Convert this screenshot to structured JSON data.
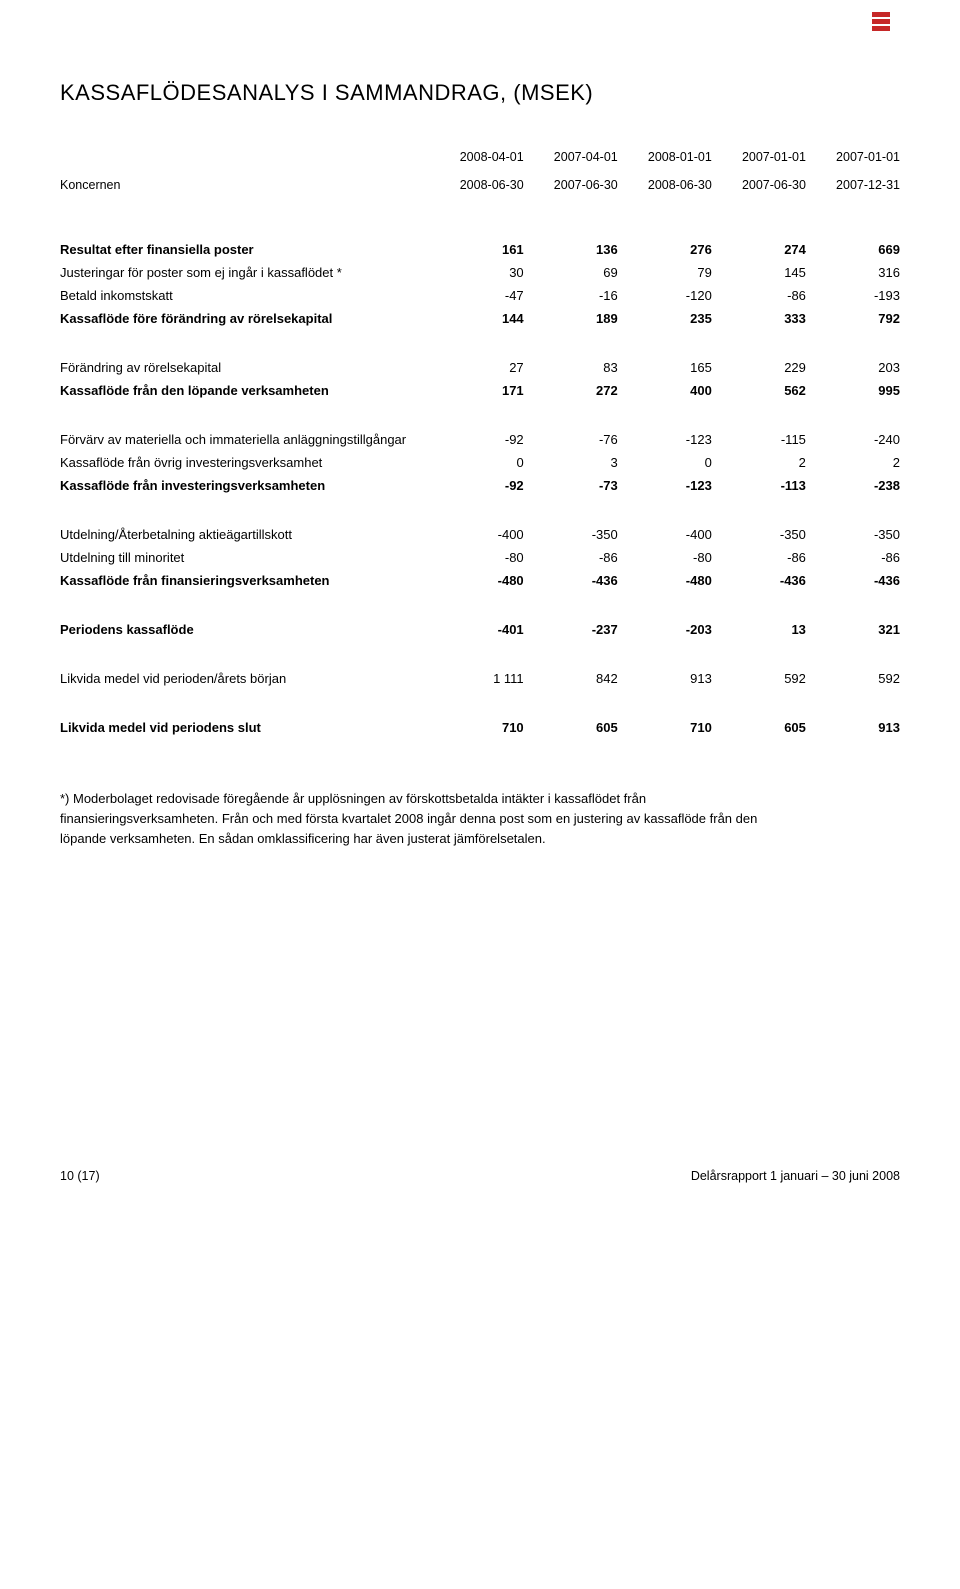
{
  "title": "KASSAFLÖDESANALYS I SAMMANDRAG, (MSEK)",
  "subtitle": "Koncernen",
  "columns": {
    "dates_top": [
      "2008-04-01",
      "2007-04-01",
      "2008-01-01",
      "2007-01-01",
      "2007-01-01"
    ],
    "dates_bot": [
      "2008-06-30",
      "2007-06-30",
      "2008-06-30",
      "2007-06-30",
      "2007-12-31"
    ]
  },
  "rows": [
    {
      "label": "Resultat efter finansiella poster",
      "vals": [
        "161",
        "136",
        "276",
        "274",
        "669"
      ],
      "bold": true,
      "gap_before": "big"
    },
    {
      "label": "Justeringar för poster som ej ingår i kassaflödet *",
      "vals": [
        "30",
        "69",
        "79",
        "145",
        "316"
      ]
    },
    {
      "label": "Betald inkomstskatt",
      "vals": [
        "-47",
        "-16",
        "-120",
        "-86",
        "-193"
      ]
    },
    {
      "label": "Kassaflöde före förändring av rörelsekapital",
      "vals": [
        "144",
        "189",
        "235",
        "333",
        "792"
      ],
      "bold": true
    },
    {
      "label": "Förändring av rörelsekapital",
      "vals": [
        "27",
        "83",
        "165",
        "229",
        "203"
      ],
      "gap_before": "section"
    },
    {
      "label": "Kassaflöde från den löpande verksamheten",
      "vals": [
        "171",
        "272",
        "400",
        "562",
        "995"
      ],
      "bold": true
    },
    {
      "label": "Förvärv av materiella och immateriella anläggningstillgångar",
      "vals": [
        "-92",
        "-76",
        "-123",
        "-115",
        "-240"
      ],
      "gap_before": "section"
    },
    {
      "label": "Kassaflöde från övrig investeringsverksamhet",
      "vals": [
        "0",
        "3",
        "0",
        "2",
        "2"
      ]
    },
    {
      "label": "Kassaflöde från investeringsverksamheten",
      "vals": [
        "-92",
        "-73",
        "-123",
        "-113",
        "-238"
      ],
      "bold": true
    },
    {
      "label": "Utdelning/Återbetalning aktieägartillskott",
      "vals": [
        "-400",
        "-350",
        "-400",
        "-350",
        "-350"
      ],
      "gap_before": "section"
    },
    {
      "label": "Utdelning till minoritet",
      "vals": [
        "-80",
        "-86",
        "-80",
        "-86",
        "-86"
      ]
    },
    {
      "label": "Kassaflöde från finansieringsverksamheten",
      "vals": [
        "-480",
        "-436",
        "-480",
        "-436",
        "-436"
      ],
      "bold": true
    },
    {
      "label": "Periodens kassaflöde",
      "vals": [
        "-401",
        "-237",
        "-203",
        "13",
        "321"
      ],
      "bold": true,
      "gap_before": "section"
    },
    {
      "label": "Likvida medel vid perioden/årets början",
      "vals": [
        "1 111",
        "842",
        "913",
        "592",
        "592"
      ],
      "gap_before": "section"
    },
    {
      "label": "Likvida medel vid periodens slut",
      "vals": [
        "710",
        "605",
        "710",
        "605",
        "913"
      ],
      "bold": true,
      "gap_before": "section"
    }
  ],
  "footnote": "*) Moderbolaget redovisade föregående år upplösningen av förskottsbetalda intäkter i kassaflödet från finansieringsverksamheten. Från och med första kvartalet 2008 ingår denna post som en justering av kassaflöde från den löpande verksamheten. En sådan omklassificering har även justerat jämförelsetalen.",
  "footer_left": "10 (17)",
  "footer_right": "Delårsrapport 1 januari – 30 juni 2008",
  "colors": {
    "logo": "#c62828",
    "text": "#000000",
    "background": "#ffffff"
  }
}
